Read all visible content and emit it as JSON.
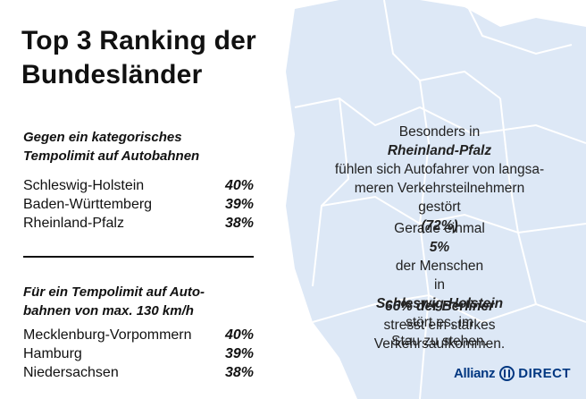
{
  "title": {
    "line1": "Top 3 Ranking der",
    "line2": "Bundesländer"
  },
  "against_limit": {
    "heading_line1": "Gegen ein kategorisches",
    "heading_line2": "Tempolimit auf Autobahnen",
    "rows": [
      {
        "state": "Schleswig-Holstein",
        "pct": "40%"
      },
      {
        "state": "Baden-Württemberg",
        "pct": "39%"
      },
      {
        "state": "Rheinland-Pfalz",
        "pct": "38%"
      }
    ]
  },
  "for_limit": {
    "heading_line1": "Für ein Tempolimit auf Auto-",
    "heading_line2": "bahnen von max. 130 km/h",
    "rows": [
      {
        "state": "Mecklenburg-Vorpommern",
        "pct": "40%"
      },
      {
        "state": "Hamburg",
        "pct": "39%"
      },
      {
        "state": "Niedersachsen",
        "pct": "38%"
      }
    ]
  },
  "facts": {
    "p1": {
      "l1_pre": "Besonders in ",
      "l1_bold": "Rheinland-Pfalz",
      "l2": "fühlen sich Autofahrer von langsa-",
      "l3": "meren Verkehrsteilnehmern",
      "l4_pre": "gestört ",
      "l4_bold": "(72%)",
      "l4_post": "."
    },
    "p2": {
      "l1_pre": "Gerade einmal ",
      "l1_bold": "5%",
      "l1_post": " der Menschen",
      "l2_pre": "in ",
      "l2_bold": "Schleswig-Holstein",
      "l2_post": " stört es, im",
      "l3": "Stau zu stehen."
    },
    "p3": {
      "l1_bold": "66% der Berliner",
      "l1_post": " stresst ein starkes",
      "l2": "Verkehrsaufkommen."
    }
  },
  "logo": {
    "brand": "Allianz",
    "product": "DIRECT",
    "color": "#003781"
  },
  "colors": {
    "map_fill": "#dde8f6",
    "map_border": "#ffffff"
  }
}
